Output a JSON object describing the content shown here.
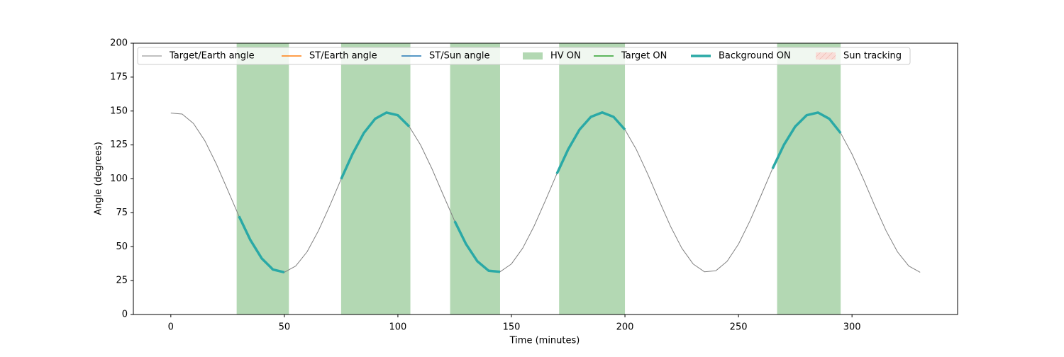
{
  "chart_data": {
    "type": "line",
    "xlabel": "Time (minutes)",
    "ylabel": "Angle (degrees)",
    "xlim": [
      -16.5,
      346.5
    ],
    "xticks": [
      0,
      50,
      100,
      150,
      200,
      250,
      300
    ],
    "ylim": [
      0,
      200
    ],
    "yticks": [
      0,
      25,
      50,
      75,
      100,
      125,
      150,
      175,
      200
    ],
    "grid": false,
    "legend": "upper center",
    "x": [
      0,
      5,
      10,
      15,
      20,
      25,
      30,
      35,
      40,
      45,
      50,
      55,
      60,
      65,
      70,
      75,
      80,
      85,
      90,
      95,
      100,
      105,
      110,
      115,
      120,
      125,
      130,
      135,
      140,
      145,
      150,
      155,
      160,
      165,
      170,
      175,
      180,
      185,
      190,
      195,
      200,
      205,
      210,
      215,
      220,
      225,
      230,
      235,
      240,
      245,
      250,
      255,
      260,
      265,
      270,
      275,
      280,
      285,
      290,
      295,
      300,
      305,
      310,
      315,
      320,
      325,
      330
    ],
    "series": [
      {
        "name": "Target/Earth angle",
        "kind": "line",
        "color": "#808080",
        "width": 1,
        "values": [
          148.5,
          147.8,
          140.8,
          128.1,
          111.2,
          92.0,
          72.5,
          55.0,
          41.4,
          33.1,
          31.1,
          35.7,
          46.2,
          61.7,
          80.2,
          99.8,
          118.3,
          133.8,
          144.3,
          148.9,
          146.9,
          138.6,
          125.0,
          107.5,
          88.0,
          68.8,
          51.9,
          39.2,
          32.2,
          31.5,
          37.3,
          49.0,
          65.2,
          84.1,
          103.7,
          121.7,
          136.3,
          145.7,
          149.0,
          145.7,
          136.3,
          121.7,
          103.7,
          84.1,
          65.2,
          49.0,
          37.3,
          31.5,
          32.2,
          39.2,
          51.9,
          68.8,
          88.0,
          107.5,
          125.0,
          138.6,
          146.9,
          148.9,
          144.3,
          133.8,
          118.3,
          99.8,
          80.2,
          61.7,
          46.2,
          35.7,
          31.1
        ]
      },
      {
        "name": "ST/Earth angle",
        "kind": "line",
        "color": "#ff7f0e",
        "width": 1.5
      },
      {
        "name": "ST/Sun angle",
        "kind": "line",
        "color": "#1f77b4",
        "width": 1.5
      },
      {
        "name": "HV ON",
        "kind": "span",
        "color": "#b3d8b3",
        "spans": [
          [
            29,
            52
          ],
          [
            75,
            105.5
          ],
          [
            123,
            145
          ],
          [
            171,
            200
          ],
          [
            267,
            295
          ]
        ]
      },
      {
        "name": "Target ON",
        "kind": "line",
        "color": "#2ca02c",
        "width": 1.5
      },
      {
        "name": "Background ON",
        "kind": "line",
        "color": "#2aa9a6",
        "width": 3.5,
        "values": [
          null,
          null,
          null,
          null,
          null,
          null,
          72.5,
          55.0,
          41.4,
          33.1,
          31.1,
          null,
          null,
          null,
          null,
          99.8,
          118.3,
          133.8,
          144.3,
          148.9,
          146.9,
          138.6,
          null,
          null,
          null,
          68.8,
          51.9,
          39.2,
          32.2,
          31.5,
          null,
          null,
          null,
          null,
          103.7,
          121.7,
          136.3,
          145.7,
          149.0,
          145.7,
          136.3,
          null,
          null,
          null,
          null,
          null,
          null,
          null,
          null,
          null,
          null,
          null,
          null,
          107.5,
          125.0,
          138.6,
          146.9,
          148.9,
          144.3,
          133.8,
          null,
          null,
          null,
          null,
          null,
          null,
          null
        ]
      },
      {
        "name": "Sun tracking",
        "kind": "span",
        "color": "#f4c7c0",
        "hatch": true,
        "spans": []
      }
    ]
  }
}
